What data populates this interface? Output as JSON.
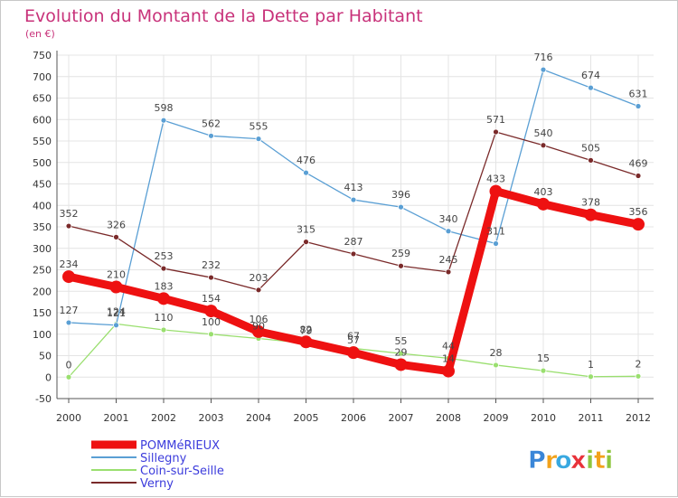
{
  "chart_data": {
    "type": "line",
    "title": "Evolution du Montant de la Dette par Habitant",
    "subtitle": "(en €)",
    "xlabel": "",
    "ylabel": "",
    "x": [
      "2000",
      "2001",
      "2002",
      "2003",
      "2004",
      "2005",
      "2006",
      "2007",
      "2008",
      "2009",
      "2010",
      "2011",
      "2012"
    ],
    "ylim": [
      -50,
      750
    ],
    "yticks": [
      -50,
      0,
      50,
      100,
      150,
      200,
      250,
      300,
      350,
      400,
      450,
      500,
      550,
      600,
      650,
      700,
      750
    ],
    "grid": true,
    "legend_position": "bottom-left",
    "series": [
      {
        "name": "POMMéRIEUX",
        "color": "#ee1111",
        "values": [
          234,
          210,
          183,
          154,
          106,
          82,
          57,
          29,
          14,
          433,
          403,
          378,
          356
        ],
        "labels": [
          "234",
          "210",
          "183",
          "154",
          "106",
          "82",
          "57",
          "29",
          "14",
          "433",
          "403",
          "378",
          "356"
        ]
      },
      {
        "name": "Sillegny",
        "color": "#5a9fd4",
        "values": [
          127,
          121,
          598,
          562,
          555,
          476,
          413,
          396,
          340,
          311,
          716,
          674,
          631
        ],
        "labels": [
          "127",
          "121",
          "598",
          "562",
          "555",
          "476",
          "413",
          "396",
          "340",
          "311",
          "716",
          "674",
          "631"
        ]
      },
      {
        "name": "Coin-sur-Seille",
        "color": "#9adf6f",
        "values": [
          0,
          124,
          110,
          100,
          90,
          79,
          67,
          55,
          44,
          28,
          15,
          1,
          2
        ],
        "labels": [
          "0",
          "124",
          "110",
          "100",
          "90",
          "79",
          "67",
          "55",
          "44",
          "28",
          "15",
          "1",
          "2"
        ]
      },
      {
        "name": "Verny",
        "color": "#7a2a2a",
        "values": [
          352,
          326,
          253,
          232,
          203,
          315,
          287,
          259,
          245,
          571,
          540,
          505,
          469
        ],
        "labels": [
          "352",
          "326",
          "253",
          "232",
          "203",
          "315",
          "287",
          "259",
          "245",
          "571",
          "540",
          "505",
          "469"
        ]
      }
    ]
  },
  "logo": {
    "letters": [
      "P",
      "r",
      "o",
      "x",
      "i",
      "t",
      "i"
    ],
    "colors": [
      "#3a86d8",
      "#f2a21b",
      "#38a8e0",
      "#e8323a",
      "#8ec63f",
      "#f2a21b",
      "#8ec63f"
    ]
  }
}
